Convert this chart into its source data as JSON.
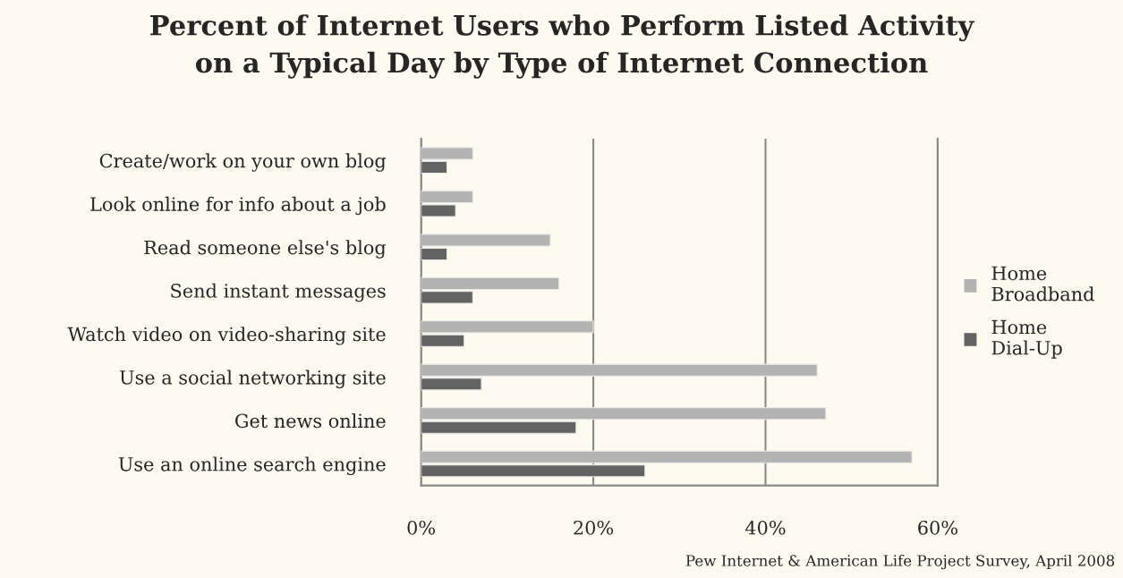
{
  "chart_data": {
    "type": "bar",
    "orientation": "horizontal",
    "title": "Percent of Internet Users who Perform Listed Activity\non a Typical Day by Type of Internet Connection",
    "categories": [
      "Create/work on your own blog",
      "Look online for info about a job",
      "Read someone else's blog",
      "Send instant messages",
      "Watch video on video-sharing site",
      "Use a social networking site",
      "Get news online",
      "Use an online search engine"
    ],
    "series": [
      {
        "name": "Home\nBroadband",
        "color": "#b3b3b3",
        "values": [
          6,
          6,
          15,
          16,
          20,
          46,
          47,
          57
        ]
      },
      {
        "name": "Home\nDial-Up",
        "color": "#636363",
        "values": [
          3,
          4,
          3,
          6,
          5,
          7,
          18,
          26
        ]
      }
    ],
    "xlim": [
      0,
      60
    ],
    "xticks": [
      {
        "value": 0,
        "label": "0%"
      },
      {
        "value": 20,
        "label": "20%"
      },
      {
        "value": 40,
        "label": "40%"
      },
      {
        "value": 60,
        "label": "60%"
      }
    ],
    "grid": "x",
    "legend": "right",
    "annotations": [
      "Pew Internet & American Life Project Survey, April 2008"
    ]
  }
}
